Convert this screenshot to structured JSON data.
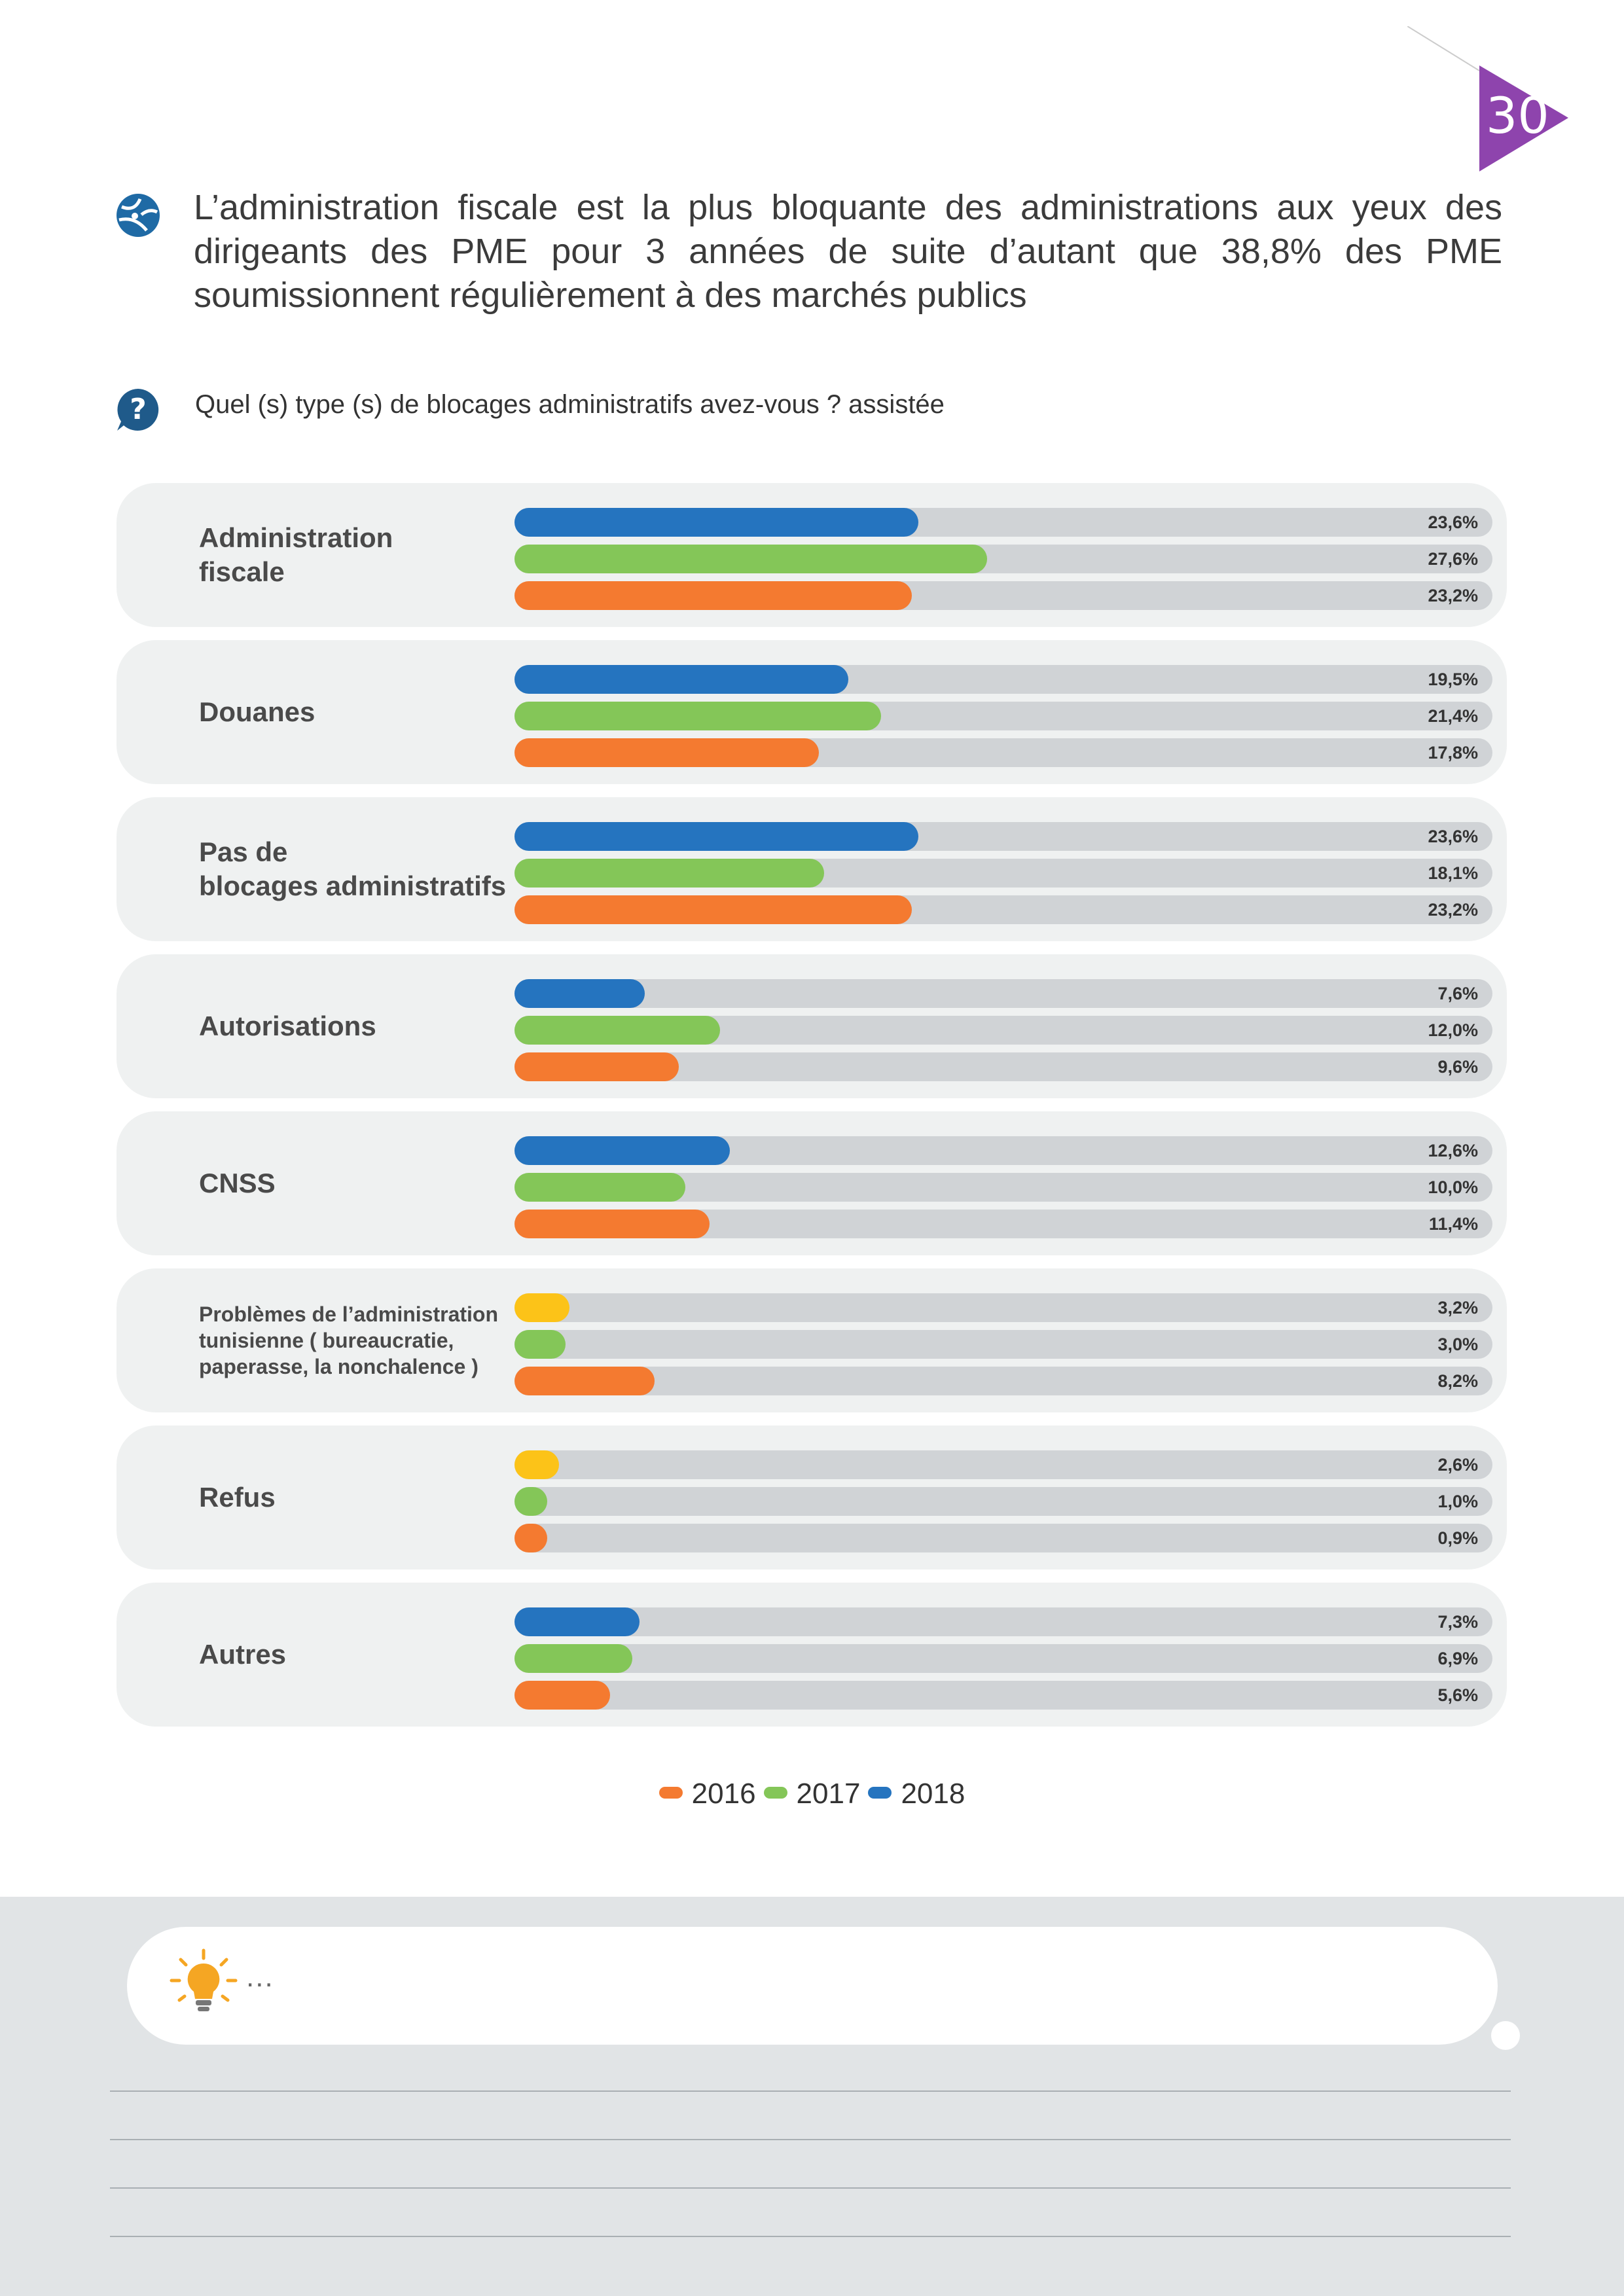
{
  "page_number": "30",
  "headline": "L’administration fiscale est la plus bloquante des administrations aux yeux des dirigeants des PME pour 3 années de suite d’autant que 38,8% des PME soumissionnent régulièrement à des marchés publics",
  "question": "Quel (s) type (s)  de blocages administratifs avez-vous ? assistée",
  "colors": {
    "2016": "#f47a30",
    "2017": "#84c658",
    "2018": "#2574bf",
    "yellow": "#fcc318",
    "track": "#d0d3d6",
    "panel": "#eff1f1",
    "page_triangle": "#8e44ad"
  },
  "chart_data": {
    "type": "bar",
    "orientation": "horizontal",
    "xlim": [
      0,
      100
    ],
    "categories": [
      "Administration\nfiscale",
      "Douanes",
      "Pas de\nblocages administratifs",
      "Autorisations",
      "CNSS",
      "Problèmes de l’administration\ntunisienne ( bureaucratie,\npaperasse, la nonchalence )",
      "Refus",
      "Autres"
    ],
    "series": [
      {
        "name": "2018",
        "color": "#2574bf",
        "values": [
          23.6,
          19.5,
          23.6,
          7.6,
          12.6,
          3.2,
          2.6,
          7.3
        ],
        "labels": [
          "23,6%",
          "19,5%",
          "23,6%",
          "7,6%",
          "12,6%",
          "3,2%",
          "2,6%",
          "7,3%"
        ]
      },
      {
        "name": "2017",
        "color": "#84c658",
        "values": [
          27.6,
          21.4,
          18.1,
          12.0,
          10.0,
          3.0,
          1.0,
          6.9
        ],
        "labels": [
          "27,6%",
          "21,4%",
          "18,1%",
          "12,0%",
          "10,0%",
          "3,0%",
          "1,0%",
          "6,9%"
        ]
      },
      {
        "name": "2016",
        "color": "#f47a30",
        "values": [
          23.2,
          17.8,
          23.2,
          9.6,
          11.4,
          8.2,
          0.9,
          5.6
        ],
        "labels": [
          "23,2%",
          "17,8%",
          "23,2%",
          "9,6%",
          "11,4%",
          "8,2%",
          "0,9%",
          "5,6%"
        ]
      }
    ],
    "top_bar_color_override": {
      "5": "#fcc318",
      "6": "#fcc318"
    },
    "legend": [
      {
        "label": "2016",
        "color": "#f47a30"
      },
      {
        "label": "2017",
        "color": "#84c658"
      },
      {
        "label": "2018",
        "color": "#2574bf"
      }
    ],
    "legend_position": "bottom-center"
  },
  "footer": {
    "ellipsis": "..."
  }
}
